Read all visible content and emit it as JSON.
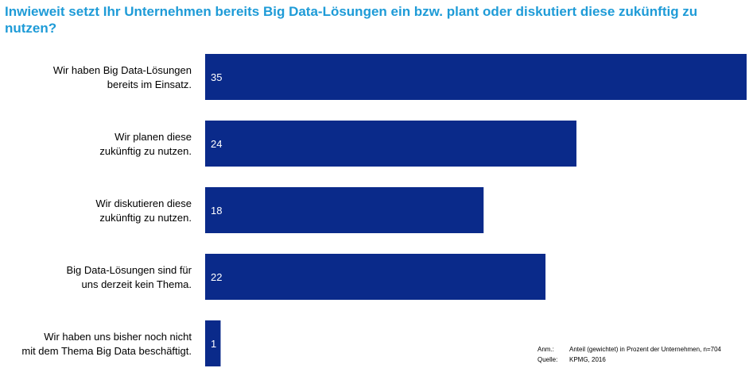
{
  "title": "Inwieweit setzt Ihr Unternehmen bereits Big Data-Lösungen ein bzw. plant oder diskutiert diese zukünftig zu nutzen?",
  "colors": {
    "title": "#1e9bd7",
    "bar": "#0a2a8a",
    "bar_label": "#ffffff",
    "category_label": "#000000"
  },
  "chart_data": {
    "type": "bar",
    "orientation": "horizontal",
    "categories": [
      [
        "Wir haben Big Data-Lösungen",
        "bereits im Einsatz."
      ],
      [
        "Wir planen diese",
        "zukünftig zu nutzen."
      ],
      [
        "Wir diskutieren diese",
        "zukünftig zu nutzen."
      ],
      [
        "Big Data-Lösungen sind für",
        "uns derzeit kein Thema."
      ],
      [
        "Wir haben uns bisher noch nicht",
        "mit dem Thema Big Data beschäftigt."
      ]
    ],
    "values": [
      35,
      24,
      18,
      22,
      1
    ],
    "xlim": [
      0,
      35
    ],
    "grid": false,
    "legend": false
  },
  "footnote": {
    "anm_key": "Anm.:",
    "anm_value": "Anteil (gewichtet) in Prozent der Unternehmen, n=704",
    "source_key": "Quelle:",
    "source_value": "KPMG, 2016"
  }
}
